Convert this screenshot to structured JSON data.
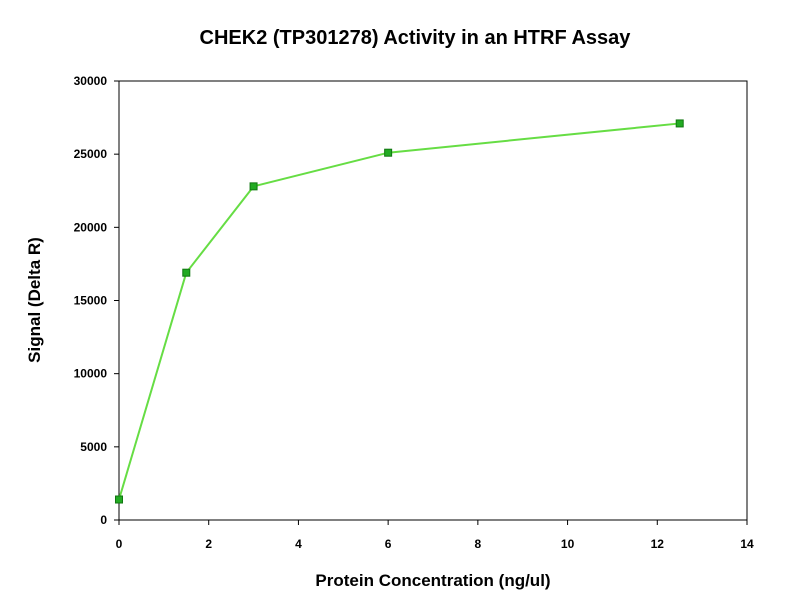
{
  "chart_data": {
    "type": "scatter",
    "title": "CHEK2 (TP301278) Activity in an HTRF Assay",
    "xlabel": "Protein Concentration (ng/ul)",
    "ylabel": "Signal (Delta R)",
    "xlim": [
      0,
      14
    ],
    "ylim": [
      0,
      30000
    ],
    "x_ticks": [
      0,
      2,
      4,
      6,
      8,
      10,
      12,
      14
    ],
    "y_ticks": [
      0,
      5000,
      10000,
      15000,
      20000,
      25000,
      30000
    ],
    "x_tick_labels": [
      "0",
      "2",
      "4",
      "6",
      "8",
      "10",
      "12",
      "14"
    ],
    "y_tick_labels": [
      "0",
      "5000",
      "10000",
      "15000",
      "20000",
      "25000",
      "30000"
    ],
    "grid": false,
    "legend": "none",
    "series": [
      {
        "x": [
          0,
          1.5,
          3,
          6,
          12.5
        ],
        "y": [
          1400,
          16900,
          22800,
          25100,
          27100
        ],
        "line_color": "#66dd44",
        "marker_color": "#22aa22",
        "marker_edge_color": "#117711",
        "marker": "square"
      }
    ]
  }
}
